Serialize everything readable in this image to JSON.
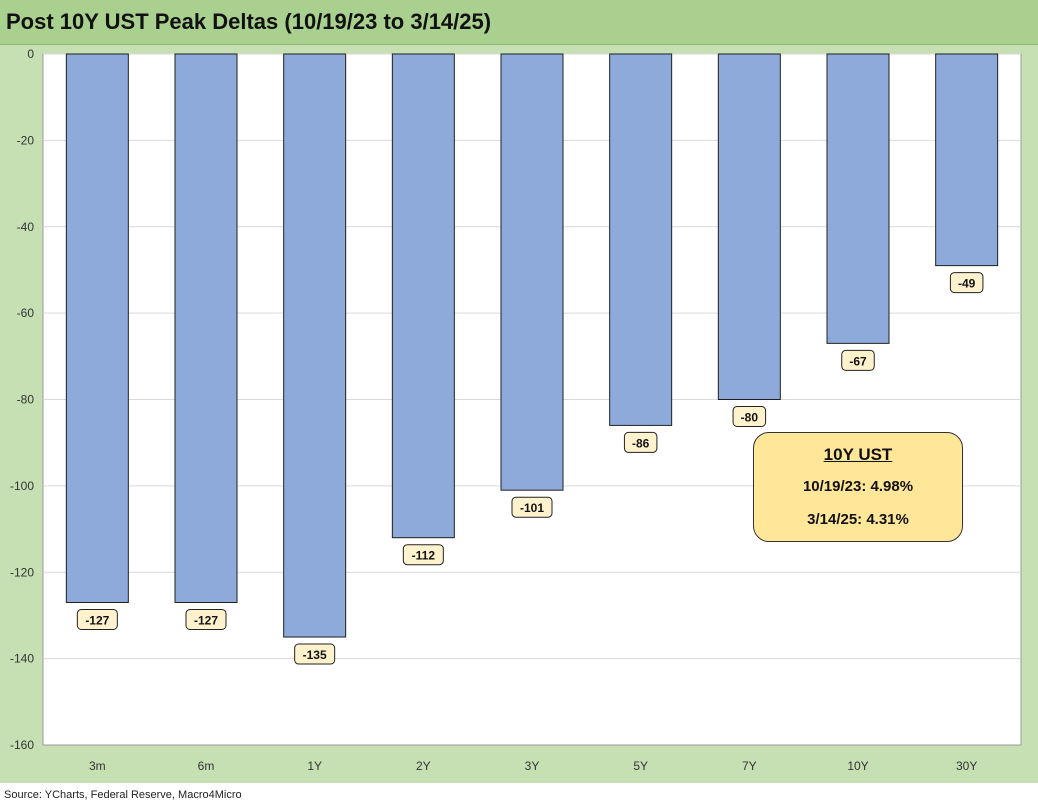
{
  "title": "Post 10Y UST Peak Deltas (10/19/23 to 3/14/25)",
  "source": "Source: YCharts, Federal Reserve, Macro4Micro",
  "colors": {
    "bar": "#8eaadb",
    "bar_stroke": "#1f1f1f",
    "label_bg": "#fff2cc",
    "callout_bg": "#ffe699",
    "frame": "#c6e0b4",
    "title_band": "#a9d08e"
  },
  "callout": {
    "title": "10Y UST",
    "line1": "10/19/23: 4.98%",
    "line2": "3/14/25: 4.31%"
  },
  "chart_data": {
    "type": "bar",
    "title": "Post 10Y UST Peak Deltas (10/19/23 to 3/14/25)",
    "categories": [
      "3m",
      "6m",
      "1Y",
      "2Y",
      "3Y",
      "5Y",
      "7Y",
      "10Y",
      "30Y"
    ],
    "values": [
      -127,
      -127,
      -135,
      -112,
      -101,
      -86,
      -80,
      -67,
      -49
    ],
    "data_labels": [
      "-127",
      "-127",
      "-135",
      "-112",
      "-101",
      "-86",
      "-80",
      "-67",
      "-49"
    ],
    "ylim": [
      -160,
      0
    ],
    "yticks": [
      0,
      -20,
      -40,
      -60,
      -80,
      -100,
      -120,
      -140,
      -160
    ],
    "xlabel": "",
    "ylabel": "",
    "grid": true,
    "legend": "none"
  }
}
